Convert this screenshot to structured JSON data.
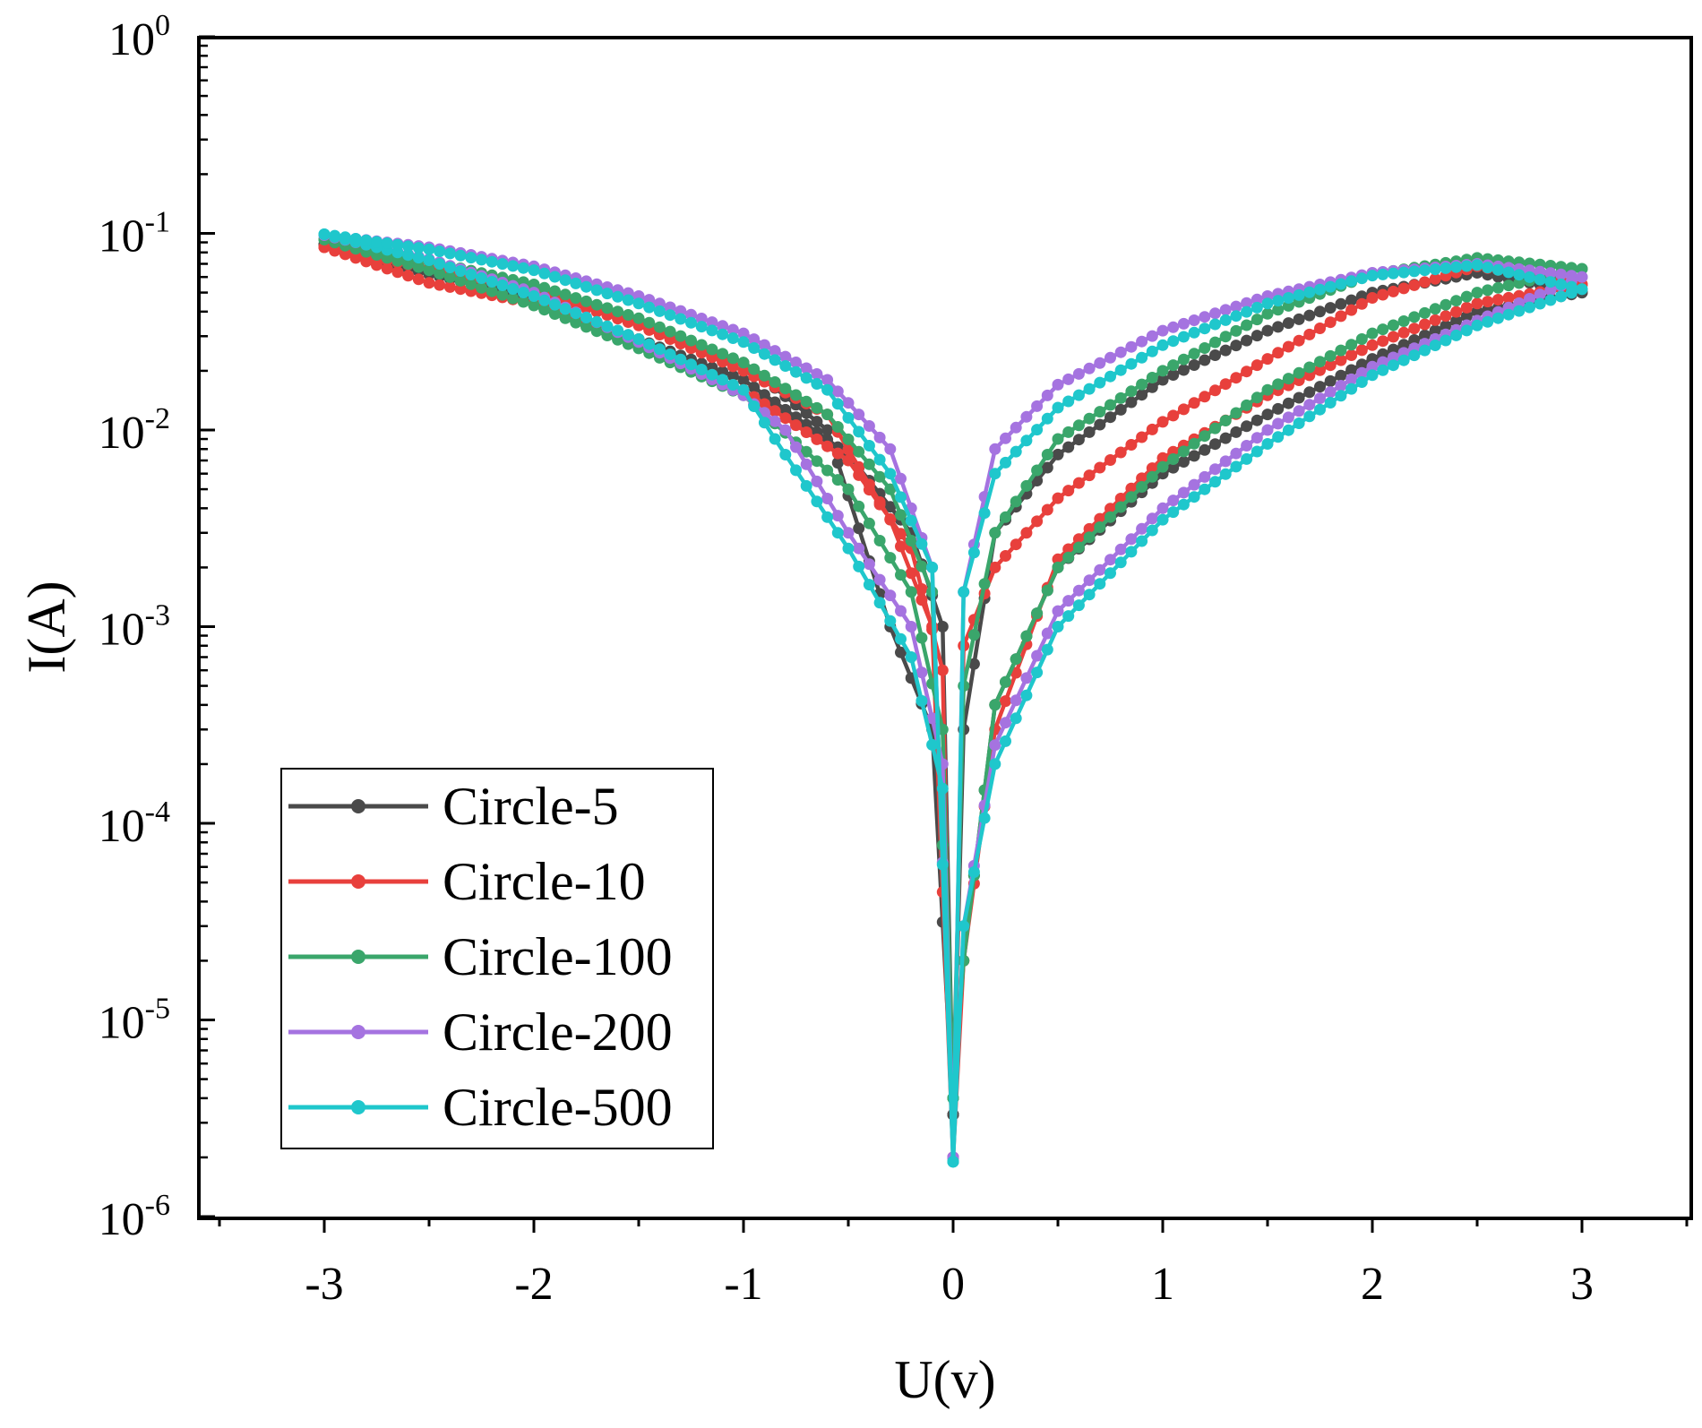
{
  "chart_data": {
    "type": "line",
    "title": "",
    "xlabel": "U(v)",
    "ylabel": "I(A)",
    "xlim": [
      -3.5,
      3.5
    ],
    "ylim_log10": [
      -6,
      0
    ],
    "yscale": "log",
    "x_ticks": [
      {
        "value": -3,
        "label": "-3"
      },
      {
        "value": -2,
        "label": "-2"
      },
      {
        "value": -1,
        "label": "-1"
      },
      {
        "value": 0,
        "label": "0"
      },
      {
        "value": 1,
        "label": "1"
      },
      {
        "value": 2,
        "label": "2"
      },
      {
        "value": 3,
        "label": "3"
      }
    ],
    "y_ticks": [
      {
        "exp": 0,
        "base": "10",
        "sup": "0"
      },
      {
        "exp": -1,
        "base": "10",
        "sup": "-1"
      },
      {
        "exp": -2,
        "base": "10",
        "sup": "-2"
      },
      {
        "exp": -3,
        "base": "10",
        "sup": "-3"
      },
      {
        "exp": -4,
        "base": "10",
        "sup": "-4"
      },
      {
        "exp": -5,
        "base": "10",
        "sup": "-5"
      },
      {
        "exp": -6,
        "base": "10",
        "sup": "-6"
      }
    ],
    "legend_position": "bottom-left",
    "series": [
      {
        "name": "Circle-5",
        "color": "#4a4a4a",
        "set_points": [
          [
            0,
            3.3e-06
          ],
          [
            0.05,
            0.0003
          ],
          [
            0.2,
            0.003
          ],
          [
            0.5,
            0.0075
          ],
          [
            1,
            0.018
          ],
          [
            1.5,
            0.032
          ],
          [
            2,
            0.05
          ],
          [
            2.5,
            0.063
          ],
          [
            3,
            0.05
          ]
        ],
        "reset_points": [
          [
            3,
            0.05
          ],
          [
            2.5,
            0.04
          ],
          [
            2,
            0.023
          ],
          [
            1.5,
            0.012
          ],
          [
            1,
            0.006
          ],
          [
            0.5,
            0.002
          ],
          [
            0.2,
            0.0004
          ],
          [
            0.05,
            2e-05
          ],
          [
            0,
            3.3e-06
          ]
        ],
        "neg_out_points": [
          [
            0,
            3.3e-06
          ],
          [
            -0.05,
            0.001
          ],
          [
            -0.2,
            0.003
          ],
          [
            -0.5,
            0.0075
          ],
          [
            -1,
            0.018
          ],
          [
            -1.5,
            0.029
          ],
          [
            -2,
            0.047
          ],
          [
            -2.5,
            0.062
          ],
          [
            -3,
            0.088
          ]
        ],
        "neg_back_points": [
          [
            -3,
            0.088
          ],
          [
            -2.5,
            0.066
          ],
          [
            -2,
            0.053
          ],
          [
            -1.5,
            0.035
          ],
          [
            -1,
            0.022
          ],
          [
            -0.6,
            0.01
          ],
          [
            -0.3,
            0.001
          ],
          [
            -0.1,
            0.0003
          ],
          [
            0,
            3.3e-06
          ]
        ]
      },
      {
        "name": "Circle-10",
        "color": "#e8403c",
        "set_points": [
          [
            0,
            2e-06
          ],
          [
            0.05,
            0.0008
          ],
          [
            0.2,
            0.002
          ],
          [
            0.5,
            0.0045
          ],
          [
            1,
            0.011
          ],
          [
            1.5,
            0.023
          ],
          [
            2,
            0.047
          ],
          [
            2.5,
            0.068
          ],
          [
            3,
            0.055
          ]
        ],
        "reset_points": [
          [
            3,
            0.055
          ],
          [
            2.5,
            0.044
          ],
          [
            2,
            0.027
          ],
          [
            1.5,
            0.015
          ],
          [
            1,
            0.0072
          ],
          [
            0.5,
            0.0022
          ],
          [
            0.2,
            0.0003
          ],
          [
            0.05,
            2e-05
          ],
          [
            0,
            2e-06
          ]
        ],
        "neg_out_points": [
          [
            0,
            2e-06
          ],
          [
            -0.05,
            0.0006
          ],
          [
            -0.2,
            0.0025
          ],
          [
            -0.5,
            0.007
          ],
          [
            -1,
            0.016
          ],
          [
            -1.5,
            0.028
          ],
          [
            -2,
            0.044
          ],
          [
            -2.5,
            0.056
          ],
          [
            -3,
            0.085
          ]
        ],
        "neg_back_points": [
          [
            -3,
            0.085
          ],
          [
            -2.5,
            0.066
          ],
          [
            -2,
            0.051
          ],
          [
            -1.5,
            0.034
          ],
          [
            -1,
            0.02
          ],
          [
            -0.6,
            0.012
          ],
          [
            -0.3,
            0.0035
          ],
          [
            -0.1,
            0.001
          ],
          [
            0,
            2e-06
          ]
        ]
      },
      {
        "name": "Circle-100",
        "color": "#3aa66b",
        "set_points": [
          [
            0,
            4e-06
          ],
          [
            0.05,
            0.0005
          ],
          [
            0.2,
            0.003
          ],
          [
            0.5,
            0.009
          ],
          [
            1,
            0.02
          ],
          [
            1.5,
            0.039
          ],
          [
            2,
            0.062
          ],
          [
            2.5,
            0.075
          ],
          [
            3,
            0.066
          ]
        ],
        "reset_points": [
          [
            3,
            0.066
          ],
          [
            2.5,
            0.05
          ],
          [
            2,
            0.031
          ],
          [
            1.5,
            0.016
          ],
          [
            1,
            0.0065
          ],
          [
            0.5,
            0.002
          ],
          [
            0.2,
            0.0004
          ],
          [
            0.05,
            2e-05
          ],
          [
            0,
            4e-06
          ]
        ],
        "neg_out_points": [
          [
            0,
            4e-06
          ],
          [
            -0.05,
            0.0003
          ],
          [
            -0.2,
            0.0015
          ],
          [
            -0.5,
            0.005
          ],
          [
            -1,
            0.015
          ],
          [
            -1.5,
            0.026
          ],
          [
            -2,
            0.043
          ],
          [
            -2.5,
            0.065
          ],
          [
            -3,
            0.093
          ]
        ],
        "neg_back_points": [
          [
            -3,
            0.093
          ],
          [
            -2.5,
            0.072
          ],
          [
            -2,
            0.055
          ],
          [
            -1.5,
            0.037
          ],
          [
            -1,
            0.022
          ],
          [
            -0.6,
            0.012
          ],
          [
            -0.3,
            0.005
          ],
          [
            -0.1,
            0.0015
          ],
          [
            0,
            4e-06
          ]
        ]
      },
      {
        "name": "Circle-200",
        "color": "#a573e0",
        "set_points": [
          [
            0,
            2e-06
          ],
          [
            0.05,
            0.0015
          ],
          [
            0.2,
            0.008
          ],
          [
            0.5,
            0.017
          ],
          [
            1,
            0.032
          ],
          [
            1.5,
            0.048
          ],
          [
            2,
            0.063
          ],
          [
            2.5,
            0.07
          ],
          [
            3,
            0.06
          ]
        ],
        "reset_points": [
          [
            3,
            0.06
          ],
          [
            2.5,
            0.036
          ],
          [
            2,
            0.021
          ],
          [
            1.5,
            0.01
          ],
          [
            1,
            0.004
          ],
          [
            0.5,
            0.0012
          ],
          [
            0.2,
            0.00025
          ],
          [
            0.05,
            3e-05
          ],
          [
            0,
            2e-06
          ]
        ],
        "neg_out_points": [
          [
            0,
            2e-06
          ],
          [
            -0.05,
            0.0002
          ],
          [
            -0.2,
            0.001
          ],
          [
            -0.5,
            0.003
          ],
          [
            -0.8,
            0.01
          ],
          [
            -1,
            0.015
          ],
          [
            -1.5,
            0.028
          ],
          [
            -2,
            0.05
          ],
          [
            -2.5,
            0.074
          ],
          [
            -3,
            0.098
          ]
        ],
        "neg_back_points": [
          [
            -3,
            0.098
          ],
          [
            -2.5,
            0.085
          ],
          [
            -2,
            0.068
          ],
          [
            -1.5,
            0.048
          ],
          [
            -1,
            0.031
          ],
          [
            -0.6,
            0.018
          ],
          [
            -0.3,
            0.008
          ],
          [
            -0.1,
            0.002
          ],
          [
            0,
            2e-06
          ]
        ]
      },
      {
        "name": "Circle-500",
        "color": "#1fc7cc",
        "set_points": [
          [
            0,
            1.9e-06
          ],
          [
            0.05,
            0.0015
          ],
          [
            0.2,
            0.006
          ],
          [
            0.5,
            0.013
          ],
          [
            1,
            0.027
          ],
          [
            1.5,
            0.044
          ],
          [
            2,
            0.061
          ],
          [
            2.5,
            0.069
          ],
          [
            3,
            0.052
          ]
        ],
        "reset_points": [
          [
            3,
            0.052
          ],
          [
            2.5,
            0.034
          ],
          [
            2,
            0.019
          ],
          [
            1.5,
            0.0085
          ],
          [
            1,
            0.0035
          ],
          [
            0.5,
            0.001
          ],
          [
            0.2,
            0.0002
          ],
          [
            0.05,
            3e-05
          ],
          [
            0,
            1.9e-06
          ]
        ],
        "neg_out_points": [
          [
            0,
            1.9e-06
          ],
          [
            -0.05,
            0.00015
          ],
          [
            -0.2,
            0.0007
          ],
          [
            -0.5,
            0.0025
          ],
          [
            -0.85,
            0.009
          ],
          [
            -1,
            0.016
          ],
          [
            -1.5,
            0.029
          ],
          [
            -2,
            0.048
          ],
          [
            -2.5,
            0.073
          ],
          [
            -3,
            0.099
          ]
        ],
        "neg_back_points": [
          [
            -3,
            0.099
          ],
          [
            -2.5,
            0.083
          ],
          [
            -2,
            0.065
          ],
          [
            -1.5,
            0.044
          ],
          [
            -1,
            0.028
          ],
          [
            -0.6,
            0.016
          ],
          [
            -0.3,
            0.006
          ],
          [
            -0.1,
            0.002
          ],
          [
            0,
            1.9e-06
          ]
        ]
      }
    ]
  }
}
